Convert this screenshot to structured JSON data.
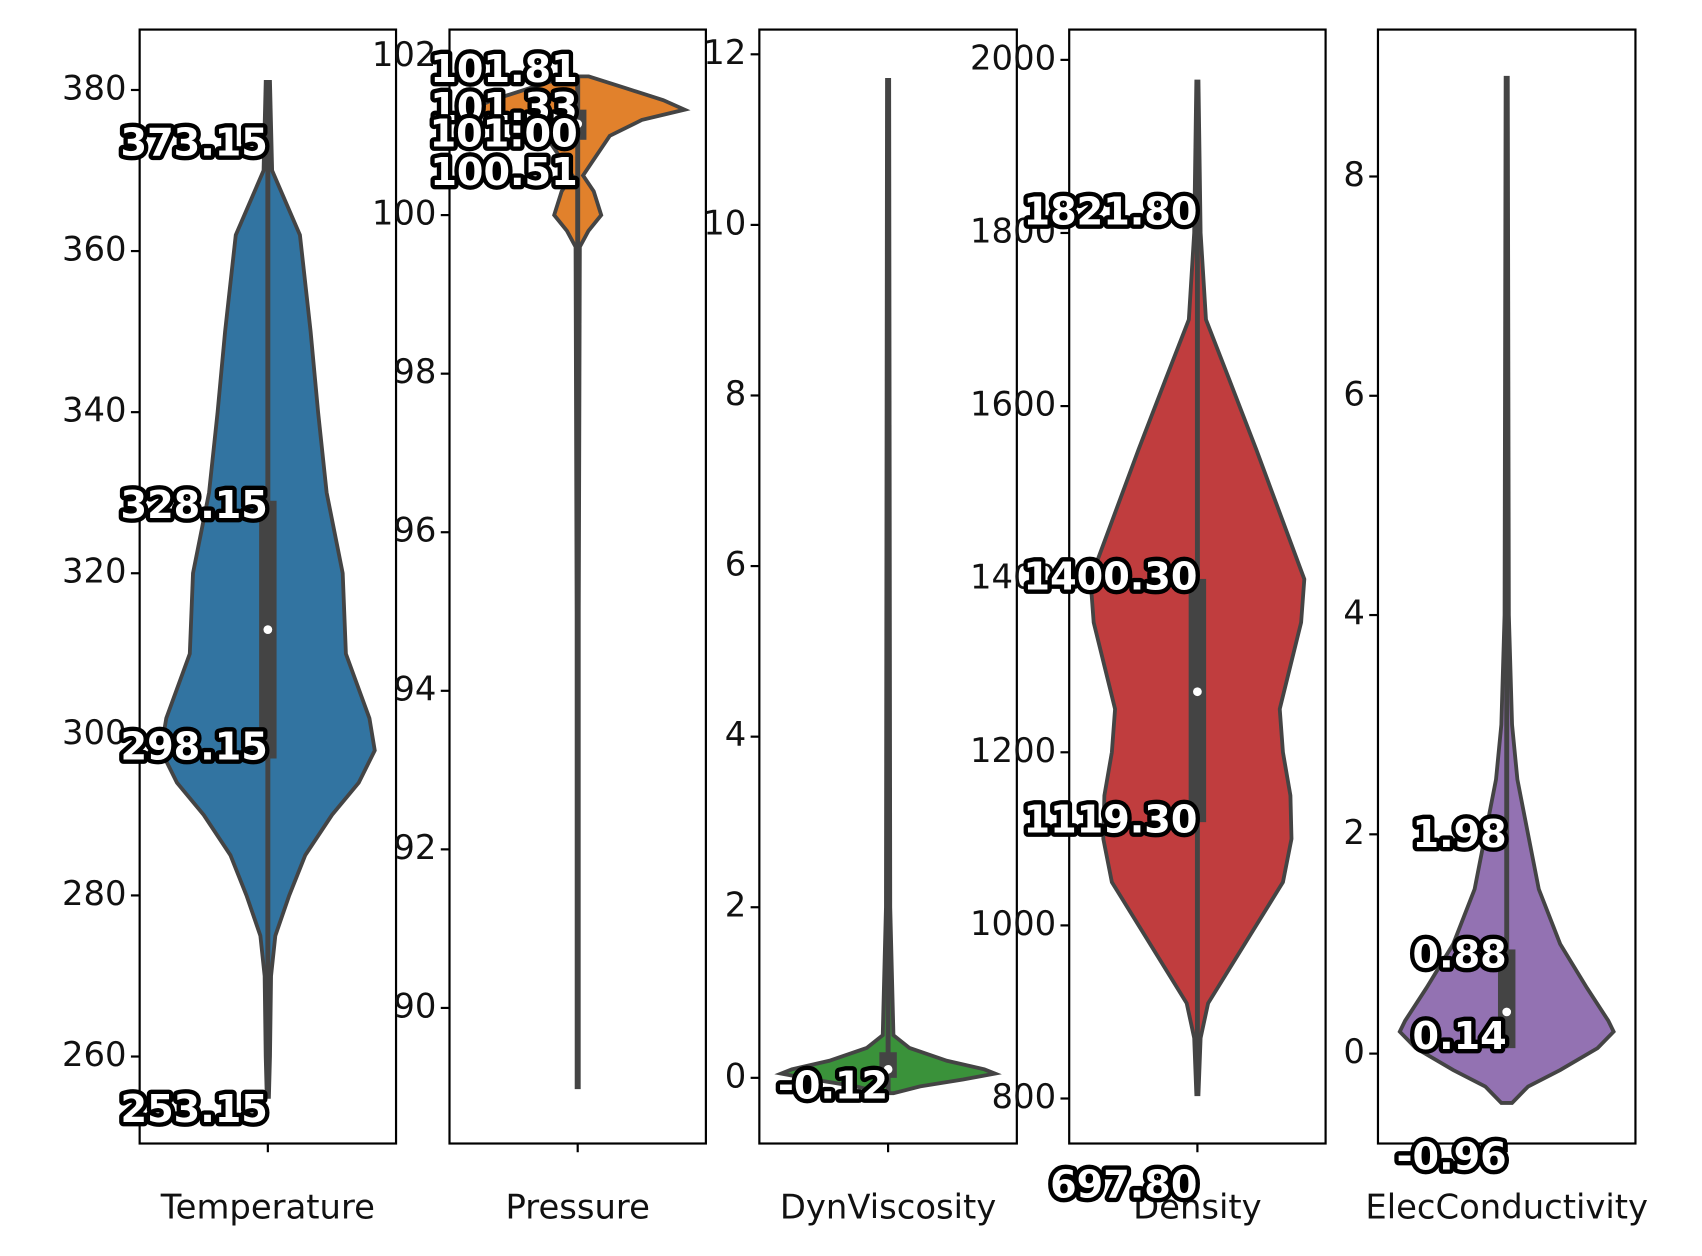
{
  "chart_data": [
    {
      "type": "violin",
      "categories": [
        "Temperature"
      ],
      "color": "#3274a1",
      "ylim": [
        249.2,
        387.5
      ],
      "yticks": [
        260,
        280,
        300,
        320,
        340,
        360,
        380
      ],
      "min": 255,
      "q1": 297,
      "median": 313,
      "q3": 329,
      "max": 381,
      "density": {
        "y": [
          381,
          370,
          362,
          350,
          340,
          330,
          320,
          310,
          302,
          298,
          294,
          290,
          285,
          280,
          275,
          270,
          260,
          255
        ],
        "width": [
          0.02,
          0.04,
          0.3,
          0.4,
          0.47,
          0.55,
          0.7,
          0.73,
          0.95,
          1.0,
          0.85,
          0.6,
          0.35,
          0.2,
          0.07,
          0.03,
          0.02,
          0.01
        ]
      },
      "values": [
        373.15,
        328.15,
        298.15,
        253.15
      ]
    },
    {
      "type": "violin",
      "categories": [
        "Pressure"
      ],
      "color": "#e1812c",
      "ylim": [
        88.29,
        102.34
      ],
      "yticks": [
        90,
        92,
        94,
        96,
        98,
        100,
        102
      ],
      "min": 89,
      "q1": 100.95,
      "median": 101.15,
      "q3": 101.33,
      "max": 101.75,
      "density": {
        "y": [
          101.75,
          101.6,
          101.45,
          101.33,
          101.2,
          101.0,
          100.7,
          100.5,
          100.3,
          100.0,
          99.8,
          99.6,
          95,
          89
        ],
        "width": [
          0.1,
          0.45,
          0.8,
          1.0,
          0.6,
          0.3,
          0.15,
          0.05,
          0.15,
          0.22,
          0.1,
          0.02,
          0.01,
          0.01
        ]
      },
      "values": [
        101.81,
        101.33,
        101.0,
        100.51
      ],
      "value_labels": [
        "101.81",
        "101.33",
        "101:00",
        "100.51"
      ]
    },
    {
      "type": "violin",
      "categories": [
        "DynViscosity"
      ],
      "color": "#3a923a",
      "ylim": [
        -0.77,
        12.29
      ],
      "yticks": [
        0,
        2,
        4,
        6,
        8,
        10,
        12
      ],
      "min": -0.18,
      "q1": 0,
      "median": 0.1,
      "q3": 0.3,
      "max": 11.7,
      "density": {
        "y": [
          11.7,
          2,
          0.5,
          0.35,
          0.2,
          0.1,
          0.05,
          -0.02,
          -0.1,
          -0.18
        ],
        "width": [
          0.01,
          0.02,
          0.05,
          0.2,
          0.55,
          0.9,
          1.0,
          0.7,
          0.3,
          0.05
        ]
      },
      "values": [
        -0.12
      ]
    },
    {
      "type": "violin",
      "categories": [
        "Density"
      ],
      "color": "#c03d3e",
      "ylim": [
        748,
        2035
      ],
      "yticks": [
        800,
        1000,
        1200,
        1400,
        1600,
        1800,
        2000
      ],
      "min": 805,
      "q1": 1119.3,
      "median": 1270,
      "q3": 1400.3,
      "max": 1975,
      "density": {
        "y": [
          1975,
          1800,
          1700,
          1630,
          1550,
          1450,
          1400,
          1350,
          1300,
          1250,
          1200,
          1150,
          1100,
          1050,
          1000,
          950,
          910,
          870,
          805
        ],
        "width": [
          0.01,
          0.03,
          0.08,
          0.3,
          0.55,
          0.85,
          1.0,
          0.97,
          0.87,
          0.77,
          0.8,
          0.87,
          0.88,
          0.8,
          0.55,
          0.3,
          0.1,
          0.03,
          0.01
        ]
      },
      "values": [
        1821.8,
        1400.3,
        1119.3,
        697.8
      ],
      "value_labels": [
        "1821.80",
        "1400.30",
        "1119.30",
        "697.80"
      ]
    },
    {
      "type": "violin",
      "categories": [
        "ElecConductivity"
      ],
      "color": "#9372b2",
      "ylim": [
        -0.82,
        9.34
      ],
      "yticks": [
        0,
        2,
        4,
        6,
        8
      ],
      "min": 0.05,
      "q1": 0.05,
      "median": 0.38,
      "q3": 0.95,
      "max": 8.9,
      "density": {
        "y": [
          8.9,
          4,
          3,
          2.5,
          2,
          1.5,
          1,
          0.6,
          0.3,
          0.2,
          0.05,
          -0.15,
          -0.3,
          -0.45
        ],
        "width": [
          0.01,
          0.02,
          0.05,
          0.1,
          0.2,
          0.3,
          0.5,
          0.75,
          0.95,
          1.0,
          0.85,
          0.5,
          0.2,
          0.05
        ]
      },
      "values": [
        1.98,
        0.88,
        0.14,
        -0.96
      ]
    }
  ]
}
